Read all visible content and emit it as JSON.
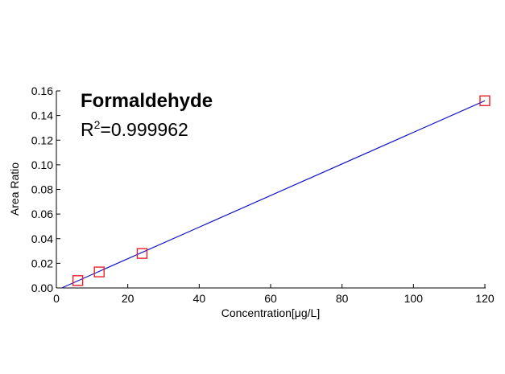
{
  "chart_data": {
    "type": "scatter",
    "title": "",
    "xlabel": "Concentration[μg/L]",
    "ylabel": "Area Ratio",
    "xlim": [
      0,
      120
    ],
    "ylim": [
      0,
      0.16
    ],
    "x_ticks": [
      0,
      20,
      40,
      60,
      80,
      100,
      120
    ],
    "x_tick_labels": [
      "0",
      "20",
      "40",
      "60",
      "80",
      "100",
      "120"
    ],
    "y_ticks": [
      0,
      0.02,
      0.04,
      0.06,
      0.08,
      0.1,
      0.12,
      0.14,
      0.16
    ],
    "y_tick_labels": [
      "0.00",
      "0.02",
      "0.04",
      "0.06",
      "0.08",
      "0.10",
      "0.12",
      "0.14",
      "0.16"
    ],
    "grid": false,
    "legend": false,
    "annotations": {
      "compound": "Formaldehyde",
      "r2_prefix": "R",
      "r2_sup": "2",
      "r2_value": "=0.999962"
    },
    "series": [
      {
        "marker": "square",
        "color": "#e8202a",
        "points": [
          {
            "x": 6,
            "y": 0.006
          },
          {
            "x": 12,
            "y": 0.013
          },
          {
            "x": 24,
            "y": 0.028
          },
          {
            "x": 120,
            "y": 0.152
          }
        ]
      }
    ],
    "fit_line": {
      "color": "#1515c8",
      "points": [
        {
          "x": 1.5,
          "y": 0.0
        },
        {
          "x": 120,
          "y": 0.152
        }
      ]
    },
    "axis_color": "#000000"
  }
}
